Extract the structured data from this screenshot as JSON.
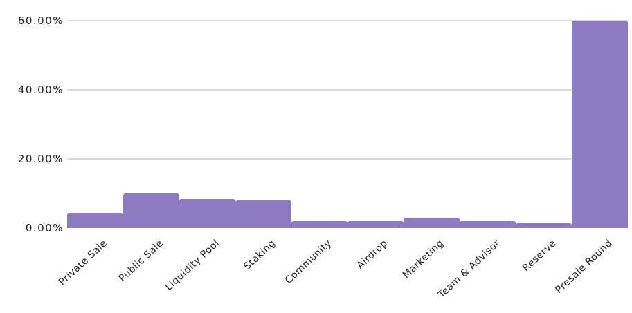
{
  "chart_data": {
    "type": "bar",
    "title": "",
    "xlabel": "",
    "ylabel": "",
    "categories": [
      "Private Sale",
      "Public Sale",
      "Liquidity Pool",
      "Staking",
      "Community",
      "Airdrop",
      "Marketing",
      "Team & Advisor",
      "Reserve",
      "Presale Round"
    ],
    "values": [
      4.5,
      10,
      8.5,
      8,
      2,
      2,
      3,
      2,
      1.5,
      60
    ],
    "value_unit": "%",
    "y_ticks": [
      {
        "label": "0.00%",
        "value": 0
      },
      {
        "label": "20.00%",
        "value": 20
      },
      {
        "label": "40.00%",
        "value": 40
      },
      {
        "label": "60.00%",
        "value": 60
      }
    ],
    "ylim": [
      0,
      60
    ],
    "grid": true,
    "legend": "none",
    "colors": {
      "bar": "#8e7cc3",
      "gridline": "#dadada",
      "text": "#212121",
      "background": "#ffffff"
    }
  }
}
